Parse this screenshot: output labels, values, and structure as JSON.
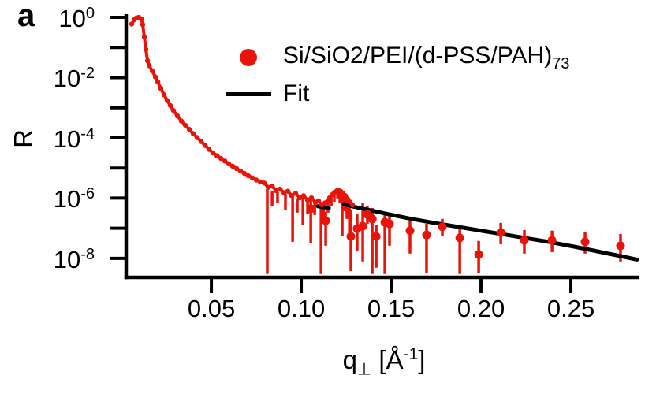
{
  "panel_label": "a",
  "colors": {
    "data": "#e81309",
    "fit": "#000000",
    "axis": "#000000",
    "background": "#ffffff"
  },
  "legend": {
    "data_label": "Si/SiO2/PEI/(d-PSS/PAH)",
    "data_label_sub": "73",
    "fit_label": "Fit"
  },
  "y_axis": {
    "title": "R"
  },
  "x_axis": {
    "title": {
      "symbol": "q",
      "subscript": "⊥",
      "unit_open": " [",
      "unit": "Å",
      "unit_exponent": "-1",
      "unit_close": "]"
    }
  },
  "chart_data": {
    "type": "scatter",
    "title": "",
    "xlabel": "q_perp [A^-1]",
    "ylabel": "R",
    "x_scale": "linear",
    "y_scale": "log10",
    "xlim": [
      0.0026,
      0.2877
    ],
    "ylim_log10": [
      -8.63,
      0.105
    ],
    "grid": false,
    "legend_position": "upper-center",
    "x_ticks": {
      "values": [
        0.05,
        0.1,
        0.15,
        0.2,
        0.25
      ],
      "labels": [
        "0.05",
        "0.10",
        "0.15",
        "0.20",
        "0.25"
      ]
    },
    "y_ticks": {
      "all_exponents": [
        0,
        -1,
        -2,
        -3,
        -4,
        -5,
        -6,
        -7,
        -8
      ],
      "labeled_exponents": [
        0,
        -2,
        -4,
        -6,
        -8
      ]
    },
    "series": [
      {
        "name": "Si/SiO2/PEI/(d-PSS/PAH)73",
        "role": "data",
        "color": "#e81309",
        "dense_points_q_logR": [
          [
            0.0057,
            -0.22
          ],
          [
            0.007,
            -0.08
          ],
          [
            0.0083,
            -0.02
          ],
          [
            0.0096,
            0.0
          ],
          [
            0.011,
            -0.05
          ],
          [
            0.0118,
            -0.24
          ],
          [
            0.0127,
            -0.65
          ],
          [
            0.0136,
            -1.07
          ],
          [
            0.0145,
            -1.44
          ],
          [
            0.0154,
            -1.6
          ],
          [
            0.0171,
            -1.78
          ],
          [
            0.0189,
            -1.98
          ],
          [
            0.0202,
            -2.14
          ],
          [
            0.0219,
            -2.36
          ],
          [
            0.0237,
            -2.57
          ],
          [
            0.0254,
            -2.76
          ],
          [
            0.0272,
            -2.93
          ],
          [
            0.0289,
            -3.09
          ],
          [
            0.0311,
            -3.27
          ],
          [
            0.0333,
            -3.44
          ],
          [
            0.0355,
            -3.58
          ],
          [
            0.0377,
            -3.72
          ],
          [
            0.0399,
            -3.86
          ],
          [
            0.0421,
            -3.99
          ],
          [
            0.0443,
            -4.12
          ],
          [
            0.0465,
            -4.25
          ],
          [
            0.0487,
            -4.38
          ],
          [
            0.0509,
            -4.5
          ],
          [
            0.0531,
            -4.59
          ],
          [
            0.0553,
            -4.68
          ],
          [
            0.0575,
            -4.77
          ],
          [
            0.0596,
            -4.86
          ],
          [
            0.0618,
            -4.94
          ],
          [
            0.064,
            -5.02
          ],
          [
            0.0662,
            -5.1
          ],
          [
            0.0684,
            -5.18
          ],
          [
            0.0706,
            -5.26
          ],
          [
            0.0728,
            -5.33
          ],
          [
            0.075,
            -5.4
          ],
          [
            0.0772,
            -5.46
          ],
          [
            0.0794,
            -5.5
          ],
          [
            0.0816,
            -5.64
          ],
          [
            0.0838,
            -5.6
          ],
          [
            0.086,
            -5.75
          ],
          [
            0.0882,
            -5.7
          ],
          [
            0.0904,
            -5.82
          ],
          [
            0.0925,
            -5.77
          ],
          [
            0.0947,
            -5.92
          ],
          [
            0.0969,
            -5.84
          ],
          [
            0.0991,
            -5.99
          ],
          [
            0.1013,
            -5.92
          ],
          [
            0.1035,
            -6.06
          ],
          [
            0.1057,
            -5.99
          ],
          [
            0.1079,
            -6.14
          ],
          [
            0.1096,
            -6.09
          ],
          [
            0.1114,
            -6.22
          ],
          [
            0.1132,
            -6.16
          ],
          [
            0.1145,
            -6.12
          ],
          [
            0.1158,
            -5.99
          ],
          [
            0.1171,
            -5.89
          ],
          [
            0.1184,
            -5.81
          ],
          [
            0.1197,
            -5.76
          ],
          [
            0.1206,
            -5.74
          ],
          [
            0.1219,
            -5.77
          ],
          [
            0.1232,
            -5.83
          ],
          [
            0.1246,
            -5.92
          ],
          [
            0.1259,
            -6.03
          ],
          [
            0.1272,
            -6.13
          ],
          [
            0.1285,
            -6.22
          ]
        ],
        "dense_error_bars_q_logLo_logHi": [
          [
            0.0811,
            -8.52,
            -5.7
          ],
          [
            0.0838,
            -6.27,
            -5.75
          ],
          [
            0.0868,
            -6.17,
            -5.8
          ],
          [
            0.0912,
            -6.38,
            -5.86
          ],
          [
            0.0952,
            -7.45,
            -5.96
          ],
          [
            0.0978,
            -6.48,
            -6.01
          ],
          [
            0.1009,
            -6.88,
            -5.99
          ],
          [
            0.1035,
            -6.54,
            -6.04
          ],
          [
            0.1075,
            -6.56,
            -6.14
          ],
          [
            0.111,
            -8.52,
            -6.2
          ],
          [
            0.1123,
            -6.75,
            -6.22
          ],
          [
            0.1149,
            -6.48,
            -6.07
          ],
          [
            0.1167,
            -6.27,
            -5.91
          ],
          [
            0.1184,
            -6.12,
            -5.83
          ],
          [
            0.1202,
            -6.01,
            -5.75
          ],
          [
            0.1215,
            -6.17,
            -5.8
          ],
          [
            0.1228,
            -7.27,
            -5.86
          ],
          [
            0.1241,
            -6.43,
            -5.96
          ],
          [
            0.1254,
            -6.69,
            -6.09
          ],
          [
            0.1268,
            -7.27,
            -6.17
          ]
        ],
        "sparse_points_q_logR_logLo_logHi": [
          [
            0.1053,
            -6.35,
            -7.48,
            -6.01
          ],
          [
            0.1136,
            -6.75,
            -7.58,
            -6.45
          ],
          [
            0.1276,
            -7.27,
            -8.42,
            -6.38
          ],
          [
            0.1311,
            -7.01,
            -7.74,
            -6.54
          ],
          [
            0.1342,
            -6.93,
            -8.1,
            -6.17
          ],
          [
            0.1368,
            -6.54,
            -6.85,
            -6.27
          ],
          [
            0.1395,
            -6.69,
            -8.52,
            -6.33
          ],
          [
            0.1417,
            -7.27,
            -8.31,
            -6.88
          ],
          [
            0.1465,
            -6.8,
            -8.52,
            -6.48
          ],
          [
            0.1491,
            -6.85,
            -7.58,
            -6.54
          ],
          [
            0.1605,
            -7.08,
            -7.84,
            -6.77
          ],
          [
            0.1697,
            -7.22,
            -8.5,
            -6.85
          ],
          [
            0.1785,
            -6.95,
            -7.27,
            -6.69
          ],
          [
            0.1882,
            -7.32,
            -8.52,
            -6.98
          ],
          [
            0.1987,
            -7.87,
            -8.5,
            -7.42
          ],
          [
            0.211,
            -7.14,
            -7.53,
            -6.82
          ],
          [
            0.2241,
            -7.4,
            -7.84,
            -7.06
          ],
          [
            0.2395,
            -7.4,
            -7.79,
            -7.08
          ],
          [
            0.2579,
            -7.45,
            -7.84,
            -7.14
          ],
          [
            0.2776,
            -7.58,
            -8.1,
            -7.19
          ]
        ]
      },
      {
        "name": "Fit",
        "role": "fit",
        "color": "#000000",
        "segments_q_logR": [
          [
            [
              0.1092,
              -6.27
            ],
            [
              0.1154,
              -6.33
            ]
          ],
          [
            [
              0.1237,
              -6.2
            ],
            [
              0.1281,
              -6.27
            ],
            [
              0.1342,
              -6.35
            ],
            [
              0.1474,
              -6.52
            ],
            [
              0.1605,
              -6.68
            ],
            [
              0.1737,
              -6.82
            ],
            [
              0.1868,
              -6.95
            ],
            [
              0.2,
              -7.08
            ],
            [
              0.2132,
              -7.21
            ],
            [
              0.2263,
              -7.34
            ],
            [
              0.2395,
              -7.47
            ],
            [
              0.2526,
              -7.62
            ],
            [
              0.2658,
              -7.78
            ],
            [
              0.2789,
              -7.94
            ],
            [
              0.2868,
              -8.04
            ]
          ]
        ]
      }
    ]
  }
}
